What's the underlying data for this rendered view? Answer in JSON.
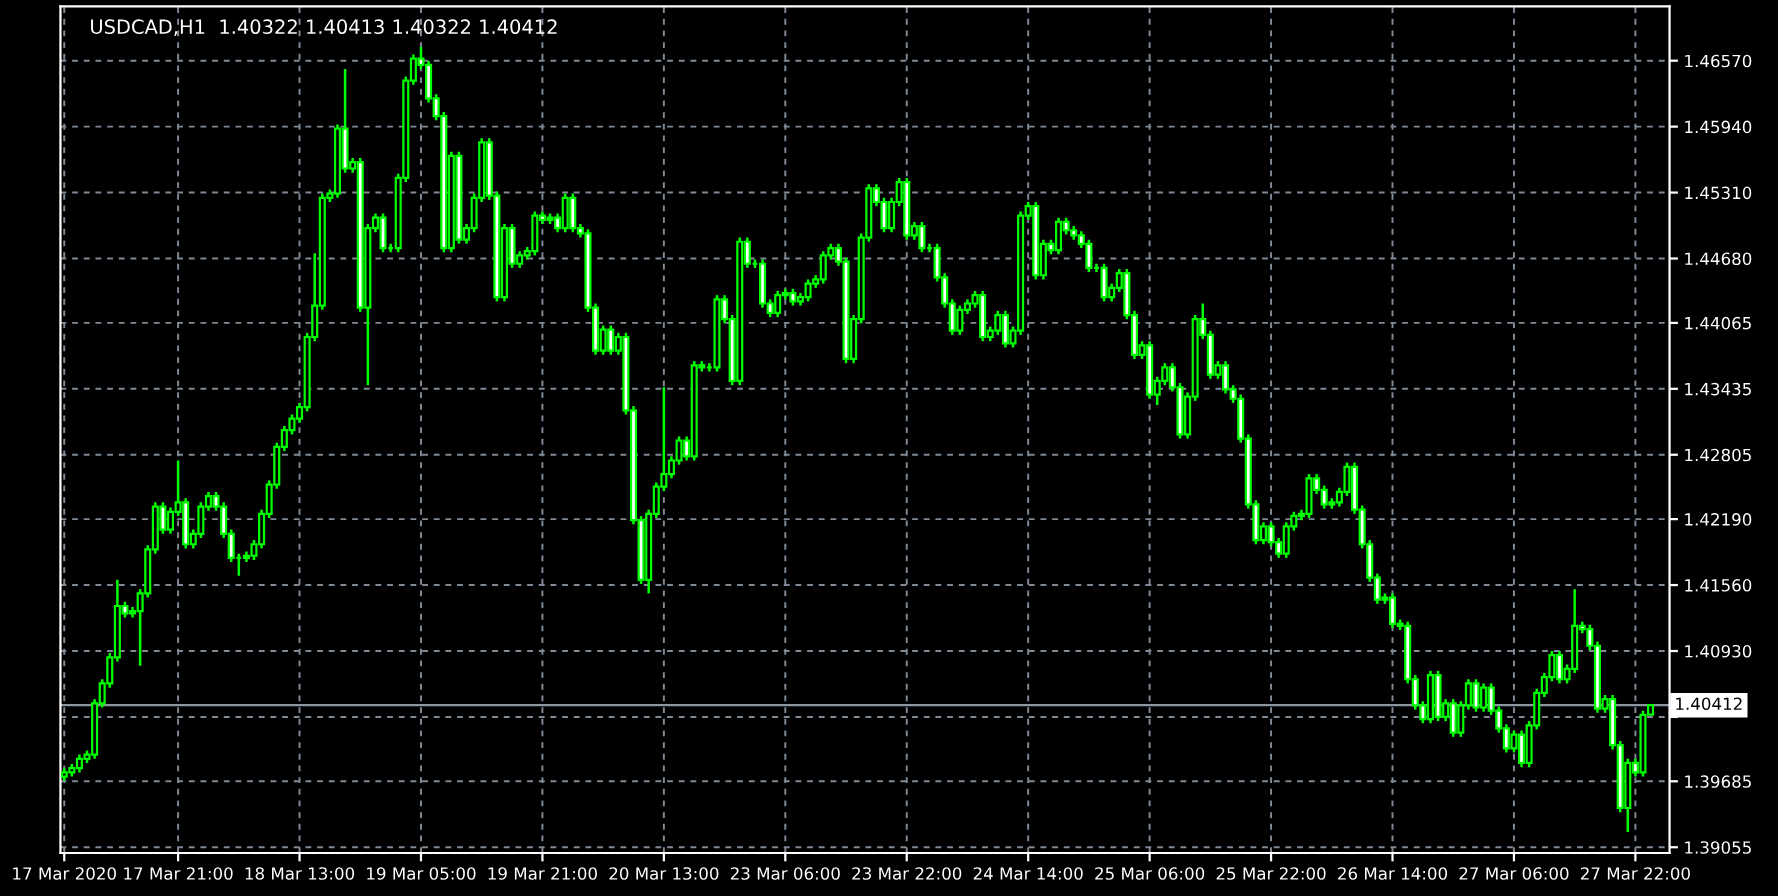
{
  "chart_data": {
    "type": "candlestick",
    "title": "USDCAD,H1  1.40322 1.40413 1.40322 1.40412",
    "categories": [
      "17 Mar 2020",
      null,
      null,
      null,
      null,
      null,
      null,
      null,
      null,
      null,
      null,
      null,
      null,
      null,
      null,
      "17 Mar 21:00",
      null,
      null,
      null,
      null,
      null,
      null,
      null,
      null,
      null,
      null,
      null,
      null,
      null,
      null,
      null,
      "18 Mar 13:00",
      null,
      null,
      null,
      null,
      null,
      null,
      null,
      null,
      null,
      null,
      null,
      null,
      null,
      null,
      null,
      "19 Mar 05:00",
      null,
      null,
      null,
      null,
      null,
      null,
      null,
      null,
      null,
      null,
      null,
      null,
      null,
      null,
      null,
      "19 Mar 21:00",
      null,
      null,
      null,
      null,
      null,
      null,
      null,
      null,
      null,
      null,
      null,
      null,
      null,
      null,
      null,
      "20 Mar 13:00",
      null,
      null,
      null,
      null,
      null,
      null,
      null,
      null,
      null,
      null,
      null,
      null,
      null,
      null,
      null,
      "23 Mar 06:00",
      null,
      null,
      null,
      null,
      null,
      null,
      null,
      null,
      null,
      null,
      null,
      null,
      null,
      null,
      null,
      "23 Mar 22:00",
      null,
      null,
      null,
      null,
      null,
      null,
      null,
      null,
      null,
      null,
      null,
      null,
      null,
      null,
      null,
      "24 Mar 14:00",
      null,
      null,
      null,
      null,
      null,
      null,
      null,
      null,
      null,
      null,
      null,
      null,
      null,
      null,
      null,
      "25 Mar 06:00",
      null,
      null,
      null,
      null,
      null,
      null,
      null,
      null,
      null,
      null,
      null,
      null,
      null,
      null,
      null,
      "25 Mar 22:00",
      null,
      null,
      null,
      null,
      null,
      null,
      null,
      null,
      null,
      null,
      null,
      null,
      null,
      null,
      null,
      "26 Mar 14:00",
      null,
      null,
      null,
      null,
      null,
      null,
      null,
      null,
      null,
      null,
      null,
      null,
      null,
      null,
      null,
      "27 Mar 06:00",
      null,
      null,
      null,
      null,
      null,
      null,
      null,
      null,
      null,
      null,
      null,
      null,
      null,
      null,
      null,
      "27 Mar 22:00",
      null,
      null
    ],
    "color": "#00ff00",
    "ohlc": [
      [
        1.3973,
        1.3981,
        1.3969,
        1.3977
      ],
      [
        1.3977,
        1.3985,
        1.3973,
        1.3981
      ],
      [
        1.3981,
        1.3994,
        1.3977,
        1.399
      ],
      [
        1.399,
        1.3998,
        1.3986,
        1.3994
      ],
      [
        1.3994,
        1.4047,
        1.399,
        1.4043
      ],
      [
        1.4043,
        1.4066,
        1.4039,
        1.4062
      ],
      [
        1.4062,
        1.4091,
        1.4058,
        1.4087
      ],
      [
        1.4087,
        1.4161,
        1.4083,
        1.4136
      ],
      [
        1.4136,
        1.414,
        1.4125,
        1.4129
      ],
      [
        1.4129,
        1.4135,
        1.4125,
        1.4131
      ],
      [
        1.4131,
        1.4152,
        1.4079,
        1.4148
      ],
      [
        1.4148,
        1.4194,
        1.4144,
        1.419
      ],
      [
        1.419,
        1.4235,
        1.4186,
        1.4231
      ],
      [
        1.4231,
        1.4235,
        1.4205,
        1.4209
      ],
      [
        1.4209,
        1.423,
        1.4205,
        1.4226
      ],
      [
        1.4226,
        1.4275,
        1.4222,
        1.4235
      ],
      [
        1.4235,
        1.4239,
        1.4191,
        1.4195
      ],
      [
        1.4195,
        1.4209,
        1.4191,
        1.4205
      ],
      [
        1.4205,
        1.4235,
        1.4201,
        1.4231
      ],
      [
        1.4231,
        1.4245,
        1.4227,
        1.4241
      ],
      [
        1.4241,
        1.4245,
        1.4227,
        1.4231
      ],
      [
        1.4231,
        1.4235,
        1.4201,
        1.4205
      ],
      [
        1.4205,
        1.4209,
        1.4178,
        1.4182
      ],
      [
        1.4182,
        1.4186,
        1.4165,
        1.4182
      ],
      [
        1.4182,
        1.4188,
        1.4178,
        1.4184
      ],
      [
        1.4184,
        1.4199,
        1.418,
        1.4195
      ],
      [
        1.4195,
        1.4228,
        1.4191,
        1.4224
      ],
      [
        1.4224,
        1.4256,
        1.422,
        1.4252
      ],
      [
        1.4252,
        1.4292,
        1.4248,
        1.4288
      ],
      [
        1.4288,
        1.4308,
        1.4284,
        1.4304
      ],
      [
        1.4304,
        1.4319,
        1.43,
        1.4315
      ],
      [
        1.4315,
        1.433,
        1.4311,
        1.4326
      ],
      [
        1.4326,
        1.4397,
        1.4322,
        1.4393
      ],
      [
        1.4393,
        1.4473,
        1.4389,
        1.4423
      ],
      [
        1.4423,
        1.453,
        1.4419,
        1.4526
      ],
      [
        1.4526,
        1.4534,
        1.4522,
        1.453
      ],
      [
        1.453,
        1.4596,
        1.4526,
        1.4592
      ],
      [
        1.4592,
        1.4649,
        1.455,
        1.4554
      ],
      [
        1.4554,
        1.4564,
        1.455,
        1.456
      ],
      [
        1.456,
        1.4564,
        1.4417,
        1.4421
      ],
      [
        1.4421,
        1.4501,
        1.4347,
        1.4497
      ],
      [
        1.4497,
        1.4511,
        1.4493,
        1.4507
      ],
      [
        1.4507,
        1.4511,
        1.4474,
        1.4478
      ],
      [
        1.4478,
        1.4482,
        1.4474,
        1.4478
      ],
      [
        1.4478,
        1.4549,
        1.4474,
        1.4545
      ],
      [
        1.4545,
        1.4642,
        1.4541,
        1.4638
      ],
      [
        1.4638,
        1.4663,
        1.4634,
        1.4659
      ],
      [
        1.4659,
        1.467,
        1.4649,
        1.4653
      ],
      [
        1.4653,
        1.4657,
        1.4617,
        1.4621
      ],
      [
        1.4621,
        1.4625,
        1.46,
        1.4604
      ],
      [
        1.4604,
        1.4608,
        1.4474,
        1.4478
      ],
      [
        1.4478,
        1.457,
        1.4474,
        1.4566
      ],
      [
        1.4566,
        1.457,
        1.4482,
        1.4486
      ],
      [
        1.4486,
        1.4501,
        1.4482,
        1.4497
      ],
      [
        1.4497,
        1.453,
        1.4493,
        1.4526
      ],
      [
        1.4526,
        1.4583,
        1.4522,
        1.4579
      ],
      [
        1.4579,
        1.4583,
        1.4524,
        1.4528
      ],
      [
        1.4528,
        1.4532,
        1.4427,
        1.4431
      ],
      [
        1.4431,
        1.4501,
        1.4427,
        1.4497
      ],
      [
        1.4497,
        1.4501,
        1.4459,
        1.4463
      ],
      [
        1.4463,
        1.4475,
        1.4459,
        1.4471
      ],
      [
        1.4471,
        1.4479,
        1.4467,
        1.4475
      ],
      [
        1.4475,
        1.4513,
        1.4471,
        1.4509
      ],
      [
        1.4509,
        1.4513,
        1.4501,
        1.4505
      ],
      [
        1.4505,
        1.4511,
        1.4501,
        1.4507
      ],
      [
        1.4507,
        1.4511,
        1.4493,
        1.4497
      ],
      [
        1.4497,
        1.453,
        1.4493,
        1.4526
      ],
      [
        1.4526,
        1.453,
        1.4493,
        1.4497
      ],
      [
        1.4497,
        1.4501,
        1.4488,
        1.4492
      ],
      [
        1.4492,
        1.4496,
        1.4417,
        1.4421
      ],
      [
        1.4421,
        1.4425,
        1.4376,
        1.438
      ],
      [
        1.438,
        1.4404,
        1.4376,
        1.44
      ],
      [
        1.44,
        1.4404,
        1.4376,
        1.438
      ],
      [
        1.438,
        1.4397,
        1.4376,
        1.4393
      ],
      [
        1.4393,
        1.4397,
        1.4319,
        1.4323
      ],
      [
        1.4323,
        1.4327,
        1.4214,
        1.4218
      ],
      [
        1.4218,
        1.4222,
        1.4157,
        1.4161
      ],
      [
        1.4161,
        1.4228,
        1.4148,
        1.4224
      ],
      [
        1.4224,
        1.4254,
        1.422,
        1.425
      ],
      [
        1.425,
        1.4345,
        1.4246,
        1.4262
      ],
      [
        1.4262,
        1.4279,
        1.4258,
        1.4275
      ],
      [
        1.4275,
        1.4298,
        1.4271,
        1.4294
      ],
      [
        1.4294,
        1.4298,
        1.4275,
        1.4279
      ],
      [
        1.4279,
        1.437,
        1.4275,
        1.4366
      ],
      [
        1.4366,
        1.437,
        1.436,
        1.4364
      ],
      [
        1.4364,
        1.4368,
        1.436,
        1.4364
      ],
      [
        1.4364,
        1.4433,
        1.436,
        1.4429
      ],
      [
        1.4429,
        1.4433,
        1.4406,
        1.441
      ],
      [
        1.441,
        1.4414,
        1.4347,
        1.4351
      ],
      [
        1.4351,
        1.4488,
        1.4347,
        1.4484
      ],
      [
        1.4484,
        1.4488,
        1.4459,
        1.4463
      ],
      [
        1.4463,
        1.4467,
        1.4459,
        1.4463
      ],
      [
        1.4463,
        1.4467,
        1.4421,
        1.4425
      ],
      [
        1.4425,
        1.4429,
        1.4412,
        1.4416
      ],
      [
        1.4416,
        1.4437,
        1.4412,
        1.4433
      ],
      [
        1.4433,
        1.4439,
        1.4429,
        1.4435
      ],
      [
        1.4435,
        1.4439,
        1.4423,
        1.4427
      ],
      [
        1.4427,
        1.4435,
        1.4423,
        1.4431
      ],
      [
        1.4431,
        1.4448,
        1.4427,
        1.4444
      ],
      [
        1.4444,
        1.4452,
        1.444,
        1.4448
      ],
      [
        1.4448,
        1.4475,
        1.4444,
        1.4471
      ],
      [
        1.4471,
        1.4482,
        1.4467,
        1.4478
      ],
      [
        1.4478,
        1.4482,
        1.4461,
        1.4465
      ],
      [
        1.4465,
        1.4469,
        1.4368,
        1.4372
      ],
      [
        1.4372,
        1.4414,
        1.4368,
        1.441
      ],
      [
        1.441,
        1.4492,
        1.4406,
        1.4488
      ],
      [
        1.4488,
        1.4539,
        1.4484,
        1.4535
      ],
      [
        1.4535,
        1.4539,
        1.4518,
        1.4522
      ],
      [
        1.4522,
        1.4526,
        1.4493,
        1.4497
      ],
      [
        1.4497,
        1.4526,
        1.4493,
        1.4522
      ],
      [
        1.4522,
        1.4545,
        1.4518,
        1.4541
      ],
      [
        1.4541,
        1.4545,
        1.4486,
        1.449
      ],
      [
        1.449,
        1.4503,
        1.4486,
        1.4499
      ],
      [
        1.4499,
        1.4503,
        1.4474,
        1.4478
      ],
      [
        1.4478,
        1.4482,
        1.4474,
        1.4478
      ],
      [
        1.4478,
        1.4482,
        1.4446,
        1.445
      ],
      [
        1.445,
        1.4454,
        1.4421,
        1.4425
      ],
      [
        1.4425,
        1.4429,
        1.4395,
        1.4399
      ],
      [
        1.4399,
        1.4423,
        1.4395,
        1.4419
      ],
      [
        1.4419,
        1.4429,
        1.4415,
        1.4425
      ],
      [
        1.4425,
        1.4437,
        1.4421,
        1.4433
      ],
      [
        1.4433,
        1.4437,
        1.4389,
        1.4393
      ],
      [
        1.4393,
        1.4403,
        1.4389,
        1.4399
      ],
      [
        1.4399,
        1.4418,
        1.4395,
        1.4414
      ],
      [
        1.4414,
        1.4418,
        1.4383,
        1.4387
      ],
      [
        1.4387,
        1.4403,
        1.4383,
        1.4399
      ],
      [
        1.4399,
        1.4513,
        1.4395,
        1.4509
      ],
      [
        1.4509,
        1.4522,
        1.4505,
        1.4518
      ],
      [
        1.4518,
        1.4522,
        1.4448,
        1.4452
      ],
      [
        1.4452,
        1.4486,
        1.4448,
        1.4482
      ],
      [
        1.4482,
        1.4486,
        1.4472,
        1.4476
      ],
      [
        1.4476,
        1.4507,
        1.4472,
        1.4503
      ],
      [
        1.4503,
        1.4507,
        1.4491,
        1.4495
      ],
      [
        1.4495,
        1.4499,
        1.4486,
        1.449
      ],
      [
        1.449,
        1.4494,
        1.4478,
        1.4482
      ],
      [
        1.4482,
        1.4486,
        1.4455,
        1.4459
      ],
      [
        1.4459,
        1.4463,
        1.4455,
        1.4459
      ],
      [
        1.4459,
        1.4463,
        1.4427,
        1.4431
      ],
      [
        1.4431,
        1.4444,
        1.4427,
        1.444
      ],
      [
        1.444,
        1.4458,
        1.4436,
        1.4454
      ],
      [
        1.4454,
        1.4458,
        1.441,
        1.4414
      ],
      [
        1.4414,
        1.4418,
        1.4372,
        1.4376
      ],
      [
        1.4376,
        1.4389,
        1.4372,
        1.4385
      ],
      [
        1.4385,
        1.4389,
        1.4334,
        1.4338
      ],
      [
        1.4338,
        1.4355,
        1.4328,
        1.4351
      ],
      [
        1.4351,
        1.4368,
        1.4347,
        1.4364
      ],
      [
        1.4364,
        1.4368,
        1.4341,
        1.4345
      ],
      [
        1.4345,
        1.4349,
        1.4296,
        1.43
      ],
      [
        1.43,
        1.434,
        1.4296,
        1.4336
      ],
      [
        1.4336,
        1.4414,
        1.4332,
        1.441
      ],
      [
        1.441,
        1.4425,
        1.4391,
        1.4395
      ],
      [
        1.4395,
        1.4399,
        1.4353,
        1.4357
      ],
      [
        1.4357,
        1.437,
        1.4353,
        1.4366
      ],
      [
        1.4366,
        1.437,
        1.4339,
        1.4343
      ],
      [
        1.4343,
        1.4347,
        1.433,
        1.4334
      ],
      [
        1.4334,
        1.4338,
        1.4292,
        1.4296
      ],
      [
        1.4296,
        1.43,
        1.4229,
        1.4233
      ],
      [
        1.4233,
        1.4237,
        1.4195,
        1.4199
      ],
      [
        1.4199,
        1.4216,
        1.4195,
        1.4212
      ],
      [
        1.4212,
        1.4216,
        1.4193,
        1.4197
      ],
      [
        1.4197,
        1.4201,
        1.4182,
        1.4186
      ],
      [
        1.4186,
        1.4216,
        1.4182,
        1.4212
      ],
      [
        1.4212,
        1.4226,
        1.4208,
        1.4222
      ],
      [
        1.4222,
        1.4228,
        1.4218,
        1.4224
      ],
      [
        1.4224,
        1.4262,
        1.422,
        1.4258
      ],
      [
        1.4258,
        1.4262,
        1.4243,
        1.4247
      ],
      [
        1.4247,
        1.4251,
        1.4229,
        1.4233
      ],
      [
        1.4233,
        1.4239,
        1.4229,
        1.4235
      ],
      [
        1.4235,
        1.4249,
        1.4231,
        1.4245
      ],
      [
        1.4245,
        1.4273,
        1.4241,
        1.4269
      ],
      [
        1.4269,
        1.4273,
        1.4224,
        1.4228
      ],
      [
        1.4228,
        1.4232,
        1.4191,
        1.4195
      ],
      [
        1.4195,
        1.4199,
        1.4159,
        1.4163
      ],
      [
        1.4163,
        1.4167,
        1.4138,
        1.4142
      ],
      [
        1.4142,
        1.4148,
        1.4138,
        1.4144
      ],
      [
        1.4144,
        1.4148,
        1.4115,
        1.4119
      ],
      [
        1.4119,
        1.4123,
        1.4113,
        1.4117
      ],
      [
        1.4117,
        1.4121,
        1.4062,
        1.4066
      ],
      [
        1.4066,
        1.407,
        1.4037,
        1.4041
      ],
      [
        1.4041,
        1.4045,
        1.4024,
        1.4028
      ],
      [
        1.4028,
        1.4074,
        1.4024,
        1.407
      ],
      [
        1.407,
        1.4074,
        1.4026,
        1.403
      ],
      [
        1.403,
        1.4047,
        1.4026,
        1.4043
      ],
      [
        1.4043,
        1.4047,
        1.4011,
        1.4015
      ],
      [
        1.4015,
        1.4045,
        1.4011,
        1.4041
      ],
      [
        1.4041,
        1.4066,
        1.4037,
        1.4062
      ],
      [
        1.4062,
        1.4066,
        1.4035,
        1.4039
      ],
      [
        1.4039,
        1.4062,
        1.4035,
        1.4058
      ],
      [
        1.4058,
        1.4062,
        1.4032,
        1.4036
      ],
      [
        1.4036,
        1.404,
        1.4015,
        1.4019
      ],
      [
        1.4019,
        1.4023,
        1.3996,
        1.4
      ],
      [
        1.4,
        1.4017,
        1.3996,
        1.4013
      ],
      [
        1.4013,
        1.4017,
        1.3982,
        1.3986
      ],
      [
        1.3986,
        1.4026,
        1.3982,
        1.4022
      ],
      [
        1.4022,
        1.4057,
        1.4018,
        1.4053
      ],
      [
        1.4053,
        1.4072,
        1.4049,
        1.4068
      ],
      [
        1.4068,
        1.4093,
        1.4064,
        1.4089
      ],
      [
        1.4089,
        1.4093,
        1.4062,
        1.4066
      ],
      [
        1.4066,
        1.408,
        1.4062,
        1.4076
      ],
      [
        1.4076,
        1.4152,
        1.4072,
        1.4117
      ],
      [
        1.4117,
        1.4121,
        1.411,
        1.4114
      ],
      [
        1.4114,
        1.4118,
        1.4094,
        1.4098
      ],
      [
        1.4098,
        1.4102,
        1.4034,
        1.4038
      ],
      [
        1.4038,
        1.4051,
        1.4034,
        1.4047
      ],
      [
        1.4047,
        1.4051,
        1.3999,
        1.4003
      ],
      [
        1.4003,
        1.4007,
        1.3939,
        1.3943
      ],
      [
        1.3943,
        1.399,
        1.392,
        1.3986
      ],
      [
        1.3986,
        1.399,
        1.3973,
        1.3977
      ],
      [
        1.3977,
        1.4036,
        1.3973,
        1.4032
      ],
      [
        1.40322,
        1.40413,
        1.40322,
        1.40412
      ]
    ],
    "ylim": [
      1.39,
      1.4709
    ],
    "yticks": [
      {
        "value": 1.4657,
        "label": "1.46570"
      },
      {
        "value": 1.4594,
        "label": "1.45940"
      },
      {
        "value": 1.4531,
        "label": "1.45310"
      },
      {
        "value": 1.4468,
        "label": "1.44680"
      },
      {
        "value": 1.44065,
        "label": "1.44065"
      },
      {
        "value": 1.43435,
        "label": "1.43435"
      },
      {
        "value": 1.42805,
        "label": "1.42805"
      },
      {
        "value": 1.4219,
        "label": "1.42190"
      },
      {
        "value": 1.4156,
        "label": "1.41560"
      },
      {
        "value": 1.4093,
        "label": "1.40930"
      },
      {
        "value": 1.403,
        "label": null
      },
      {
        "value": 1.39685,
        "label": "1.39685"
      },
      {
        "value": 1.39055,
        "label": "1.39055"
      }
    ],
    "ref_lines": [
      {
        "axis": "y",
        "value": 1.40412,
        "label": "1.40412",
        "color": "#8c96a0"
      }
    ],
    "grid": true
  }
}
